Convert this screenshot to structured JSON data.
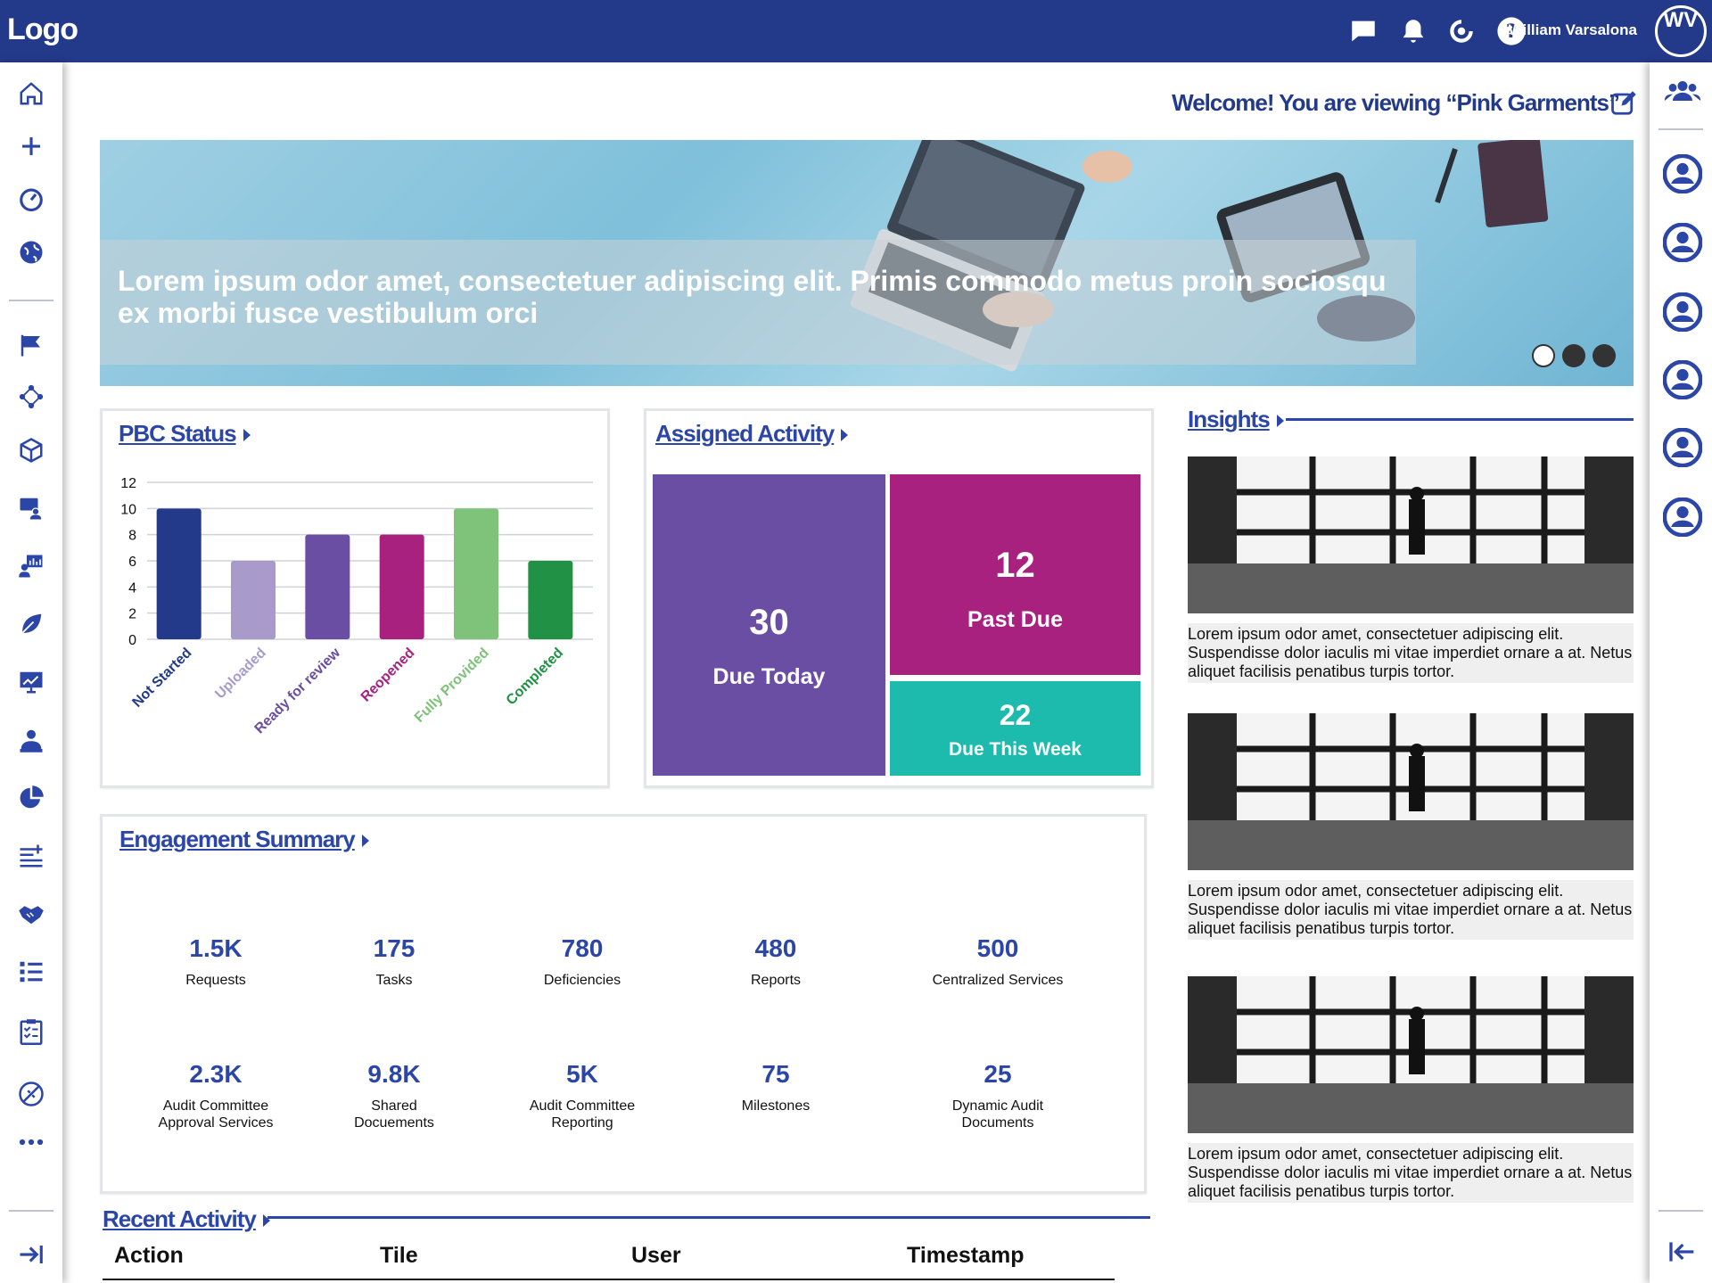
{
  "topbar": {
    "logo": "Logo",
    "icons": [
      "chat-icon",
      "bell-icon",
      "refresh-icon",
      "help-icon"
    ],
    "user_name": "William Varsalona",
    "user_initials": "WV",
    "bg_color": "#233a8b"
  },
  "welcome": {
    "prefix": "Welcome! You are viewing ",
    "client": "“Pink Garments”"
  },
  "banner": {
    "caption": "Lorem ipsum odor amet, consectetuer adipiscing elit. Primis commodo metus proin sociosqu ex morbi fusce vestibulum orci",
    "slides": 3,
    "active_slide": 1
  },
  "pbc_status": {
    "title": "PBC Status"
  },
  "chart_data": {
    "type": "bar",
    "title": "",
    "categories": [
      "Not Started",
      "Uploaded",
      "Ready for review",
      "Reopened",
      "Fully Provided",
      "Completed"
    ],
    "values": [
      10,
      6,
      8,
      8,
      10,
      6
    ],
    "colors": [
      "#233a8b",
      "#a89acb",
      "#6a4ea3",
      "#a9217f",
      "#7fc27a",
      "#219146"
    ],
    "ylim": [
      0,
      12
    ],
    "yticks": [
      0,
      2,
      4,
      6,
      8,
      10,
      12
    ],
    "grid": true,
    "xlabel": "",
    "ylabel": ""
  },
  "assigned_activity": {
    "title": "Assigned Activity",
    "tiles": [
      {
        "value": "30",
        "label": "Due Today",
        "color": "#6a4ea3"
      },
      {
        "value": "12",
        "label": "Past Due",
        "color": "#a9217f"
      },
      {
        "value": "22",
        "label": "Due This Week",
        "color": "#1cbbad"
      }
    ]
  },
  "insights": {
    "title": "Insights",
    "items": [
      {
        "text": "Lorem ipsum odor amet, consectetuer adipiscing elit. Suspendisse dolor iaculis mi vitae imperdiet ornare a at. Netus aliquet facilisis penatibus turpis tortor."
      },
      {
        "text": "Lorem ipsum odor amet, consectetuer adipiscing elit. Suspendisse dolor iaculis mi vitae imperdiet ornare a at. Netus aliquet facilisis penatibus turpis tortor."
      },
      {
        "text": "Lorem ipsum odor amet, consectetuer adipiscing elit. Suspendisse dolor iaculis mi vitae imperdiet ornare a at. Netus aliquet facilisis penatibus turpis tortor."
      }
    ]
  },
  "engagement_summary": {
    "title": "Engagement Summary",
    "stats": [
      {
        "value": "1.5K",
        "label": "Requests"
      },
      {
        "value": "175",
        "label": "Tasks"
      },
      {
        "value": "780",
        "label": "Deficiencies"
      },
      {
        "value": "480",
        "label": "Reports"
      },
      {
        "value": "500",
        "label": "Centralized Services"
      },
      {
        "value": "2.3K",
        "label": "Audit Committee Approval Services"
      },
      {
        "value": "9.8K",
        "label": "Shared Docuements"
      },
      {
        "value": "5K",
        "label": "Audit Committee Reporting"
      },
      {
        "value": "75",
        "label": "Milestones"
      },
      {
        "value": "25",
        "label": "Dynamic Audit Documents"
      }
    ]
  },
  "recent_activity": {
    "title": "Recent Activity",
    "columns": [
      "Action",
      "Tile",
      "User",
      "Timestamp"
    ]
  },
  "left_nav_icons": [
    "home-icon",
    "plus-icon",
    "dashboard-icon",
    "globe-icon",
    "flag-icon",
    "network-icon",
    "cube-icon",
    "presenter-icon",
    "analytics-icon",
    "leaf-icon",
    "monitor-chart-icon",
    "user-badge-icon",
    "pie-chart-icon",
    "list-add-icon",
    "handshake-icon",
    "list-icon",
    "clipboard-icon",
    "satellite-icon",
    "more-icon",
    "collapse-icon"
  ],
  "right_nav_icons": [
    "team-icon",
    "user-icon",
    "user-icon",
    "user-icon",
    "user-icon",
    "user-icon",
    "user-icon",
    "expand-icon"
  ]
}
